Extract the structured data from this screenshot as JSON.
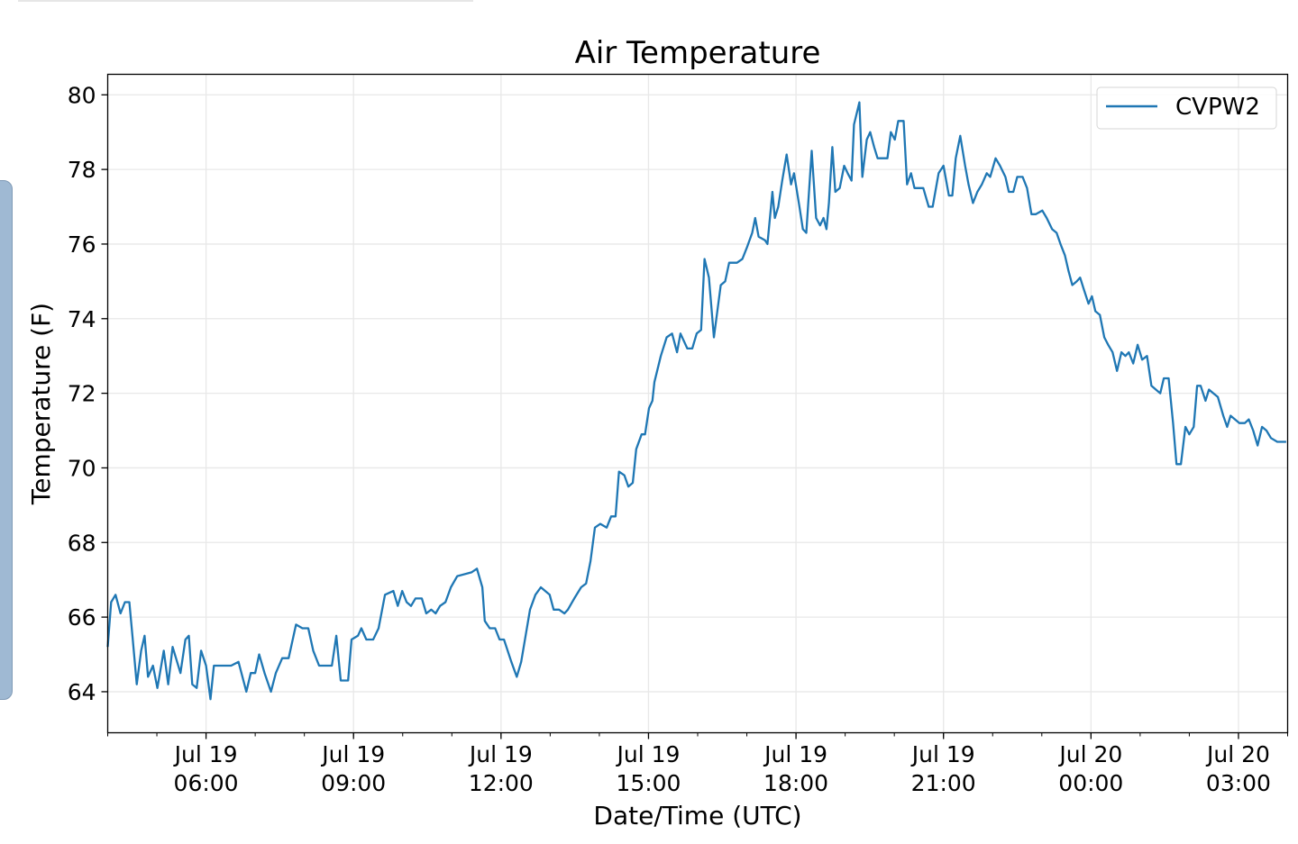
{
  "chart_data": {
    "type": "line",
    "title": "Air Temperature",
    "xlabel": "Date/Time (UTC)",
    "ylabel": "Temperature (F)",
    "x_unit": "hours since Jul 19 04:00 UTC",
    "xlim": [
      0,
      24
    ],
    "ylim": [
      62.9,
      80.55
    ],
    "grid": true,
    "legend_position": "top-right",
    "yticks": [
      64,
      66,
      68,
      70,
      72,
      74,
      76,
      78,
      80
    ],
    "xticks": [
      {
        "hour": 2,
        "line1": "Jul 19",
        "line2": "06:00"
      },
      {
        "hour": 5,
        "line1": "Jul 19",
        "line2": "09:00"
      },
      {
        "hour": 8,
        "line1": "Jul 19",
        "line2": "12:00"
      },
      {
        "hour": 11,
        "line1": "Jul 19",
        "line2": "15:00"
      },
      {
        "hour": 14,
        "line1": "Jul 19",
        "line2": "18:00"
      },
      {
        "hour": 17,
        "line1": "Jul 19",
        "line2": "21:00"
      },
      {
        "hour": 20,
        "line1": "Jul 20",
        "line2": "00:00"
      },
      {
        "hour": 23,
        "line1": "Jul 20",
        "line2": "03:00"
      }
    ],
    "series": [
      {
        "name": "CVPW2",
        "color": "#1f77b4",
        "x": [
          0,
          0.07,
          0.16,
          0.26,
          0.35,
          0.44,
          0.51,
          0.59,
          0.68,
          0.75,
          0.82,
          0.92,
          1.01,
          1.14,
          1.23,
          1.32,
          1.48,
          1.58,
          1.65,
          1.72,
          1.81,
          1.9,
          2.0,
          2.09,
          2.16,
          2.33,
          2.51,
          2.66,
          2.82,
          2.91,
          3.0,
          3.08,
          3.19,
          3.32,
          3.42,
          3.55,
          3.68,
          3.83,
          3.96,
          4.08,
          4.18,
          4.3,
          4.41,
          4.56,
          4.65,
          4.74,
          4.89,
          4.96,
          5.09,
          5.16,
          5.26,
          5.4,
          5.51,
          5.64,
          5.81,
          5.9,
          5.99,
          6.08,
          6.17,
          6.26,
          6.39,
          6.48,
          6.58,
          6.67,
          6.76,
          6.87,
          6.98,
          7.11,
          7.4,
          7.51,
          7.62,
          7.67,
          7.77,
          7.88,
          7.97,
          8.06,
          8.21,
          8.32,
          8.41,
          8.5,
          8.59,
          8.7,
          8.81,
          8.99,
          9.07,
          9.18,
          9.29,
          9.36,
          9.49,
          9.63,
          9.73,
          9.82,
          9.91,
          10.02,
          10.15,
          10.24,
          10.33,
          10.4,
          10.51,
          10.59,
          10.68,
          10.75,
          10.86,
          10.93,
          11.01,
          11.08,
          11.12,
          11.25,
          11.37,
          11.48,
          11.58,
          11.65,
          11.79,
          11.89,
          11.98,
          12.07,
          12.14,
          12.23,
          12.33,
          12.47,
          12.56,
          12.64,
          12.8,
          12.91,
          13.0,
          13.11,
          13.17,
          13.24,
          13.37,
          13.42,
          13.52,
          13.57,
          13.64,
          13.72,
          13.81,
          13.9,
          13.96,
          14.07,
          14.14,
          14.21,
          14.32,
          14.41,
          14.49,
          14.56,
          14.62,
          14.67,
          14.74,
          14.8,
          14.89,
          14.98,
          15.05,
          15.13,
          15.18,
          15.29,
          15.35,
          15.44,
          15.51,
          15.59,
          15.66,
          15.73,
          15.86,
          15.93,
          16.01,
          16.08,
          16.19,
          16.26,
          16.34,
          16.41,
          16.52,
          16.59,
          16.7,
          16.78,
          16.9,
          17.0,
          17.11,
          17.18,
          17.25,
          17.34,
          17.44,
          17.51,
          17.6,
          17.69,
          17.78,
          17.88,
          17.95,
          18.06,
          18.15,
          18.26,
          18.33,
          18.42,
          18.5,
          18.61,
          18.7,
          18.79,
          18.88,
          19.01,
          19.1,
          19.21,
          19.3,
          19.38,
          19.47,
          19.54,
          19.62,
          19.71,
          19.78,
          19.85,
          19.95,
          20.02,
          20.09,
          20.18,
          20.27,
          20.35,
          20.44,
          20.53,
          20.62,
          20.7,
          20.77,
          20.86,
          20.95,
          21.04,
          21.14,
          21.23,
          21.32,
          21.41,
          21.48,
          21.58,
          21.67,
          21.74,
          21.83,
          21.92,
          22.0,
          22.09,
          22.16,
          22.23,
          22.33,
          22.4,
          22.49,
          22.58,
          22.69,
          22.77,
          22.84,
          22.93,
          23.02,
          23.13,
          23.21,
          23.3,
          23.39,
          23.48,
          23.57,
          23.66,
          23.79,
          23.97
        ],
        "y": [
          65.2,
          66.4,
          66.6,
          66.1,
          66.4,
          66.4,
          65.4,
          64.2,
          65.1,
          65.5,
          64.4,
          64.7,
          64.1,
          65.1,
          64.2,
          65.2,
          64.5,
          65.4,
          65.5,
          64.2,
          64.1,
          65.1,
          64.7,
          63.8,
          64.7,
          64.7,
          64.7,
          64.8,
          64.0,
          64.5,
          64.5,
          65.0,
          64.5,
          64.0,
          64.5,
          64.9,
          64.9,
          65.8,
          65.7,
          65.7,
          65.1,
          64.7,
          64.7,
          64.7,
          65.5,
          64.3,
          64.3,
          65.4,
          65.5,
          65.7,
          65.4,
          65.4,
          65.7,
          66.6,
          66.7,
          66.3,
          66.7,
          66.4,
          66.3,
          66.5,
          66.5,
          66.1,
          66.2,
          66.1,
          66.3,
          66.4,
          66.8,
          67.1,
          67.2,
          67.3,
          66.8,
          65.9,
          65.7,
          65.7,
          65.4,
          65.4,
          64.8,
          64.4,
          64.8,
          65.5,
          66.2,
          66.6,
          66.8,
          66.6,
          66.2,
          66.2,
          66.1,
          66.2,
          66.5,
          66.8,
          66.9,
          67.5,
          68.4,
          68.5,
          68.4,
          68.7,
          68.7,
          69.9,
          69.8,
          69.5,
          69.6,
          70.5,
          70.9,
          70.9,
          71.6,
          71.8,
          72.3,
          73.0,
          73.5,
          73.6,
          73.1,
          73.6,
          73.2,
          73.2,
          73.6,
          73.7,
          75.6,
          75.1,
          73.5,
          74.9,
          75.0,
          75.5,
          75.5,
          75.6,
          75.9,
          76.3,
          76.7,
          76.2,
          76.1,
          76.0,
          77.4,
          76.7,
          77.0,
          77.7,
          78.4,
          77.6,
          77.9,
          77.0,
          76.4,
          76.3,
          78.5,
          76.7,
          76.5,
          76.7,
          76.4,
          77.1,
          78.6,
          77.4,
          77.5,
          78.1,
          77.9,
          77.7,
          79.2,
          79.8,
          77.8,
          78.8,
          79.0,
          78.6,
          78.3,
          78.3,
          78.3,
          79.0,
          78.8,
          79.3,
          79.3,
          77.6,
          77.9,
          77.5,
          77.5,
          77.5,
          77.0,
          77.0,
          77.9,
          78.1,
          77.3,
          77.3,
          78.3,
          78.9,
          78.1,
          77.6,
          77.1,
          77.4,
          77.6,
          77.9,
          77.8,
          78.3,
          78.1,
          77.8,
          77.4,
          77.4,
          77.8,
          77.8,
          77.5,
          76.8,
          76.8,
          76.9,
          76.7,
          76.4,
          76.3,
          76.0,
          75.7,
          75.3,
          74.9,
          75.0,
          75.1,
          74.8,
          74.4,
          74.6,
          74.2,
          74.1,
          73.5,
          73.3,
          73.1,
          72.6,
          73.1,
          73.0,
          73.1,
          72.8,
          73.3,
          72.9,
          73.0,
          72.2,
          72.1,
          72.0,
          72.4,
          72.4,
          71.2,
          70.1,
          70.1,
          71.1,
          70.9,
          71.1,
          72.2,
          72.2,
          71.8,
          72.1,
          72.0,
          71.9,
          71.4,
          71.1,
          71.4,
          71.3,
          71.2,
          71.2,
          71.3,
          71.0,
          70.6,
          71.1,
          71.0,
          70.8,
          70.7,
          70.7
        ]
      }
    ]
  }
}
